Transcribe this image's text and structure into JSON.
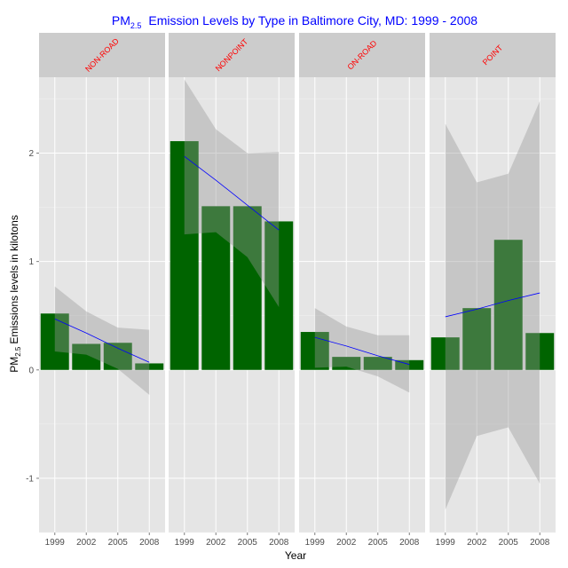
{
  "chart_data": {
    "type": "bar",
    "title": {
      "prefix": "PM",
      "subscript": "2.5",
      "suffix": "Emission Levels by Type in Baltimore City, MD: 1999 - 2008"
    },
    "xlabel": "Year",
    "ylabel": {
      "prefix": "PM",
      "subscript": "2.5",
      "suffix": "Emissions levels in kilotons"
    },
    "ylim": [
      -1.5,
      2.7
    ],
    "yticks": [
      -1,
      0,
      1,
      2
    ],
    "grid": true,
    "categories": [
      "1999",
      "2002",
      "2005",
      "2008"
    ],
    "panels": [
      {
        "name": "NON-ROAD",
        "values": [
          0.52,
          0.24,
          0.25,
          0.06
        ],
        "trend": [
          0.47,
          0.34,
          0.2,
          0.07
        ],
        "ci_low": [
          0.17,
          0.14,
          0.01,
          -0.23
        ],
        "ci_high": [
          0.77,
          0.54,
          0.39,
          0.37
        ]
      },
      {
        "name": "NONPOINT",
        "values": [
          2.11,
          1.51,
          1.51,
          1.37
        ],
        "trend": [
          1.97,
          1.75,
          1.52,
          1.29
        ],
        "ci_low": [
          1.25,
          1.27,
          1.04,
          0.58
        ],
        "ci_high": [
          2.68,
          2.22,
          2.0,
          2.01
        ]
      },
      {
        "name": "ON-ROAD",
        "values": [
          0.35,
          0.12,
          0.12,
          0.09
        ],
        "trend": [
          0.3,
          0.22,
          0.13,
          0.05
        ],
        "ci_low": [
          0.02,
          0.03,
          -0.06,
          -0.21
        ],
        "ci_high": [
          0.57,
          0.4,
          0.32,
          0.32
        ]
      },
      {
        "name": "POINT",
        "values": [
          0.3,
          0.57,
          1.2,
          0.34
        ],
        "trend": [
          0.49,
          0.56,
          0.64,
          0.71
        ],
        "ci_low": [
          -1.29,
          -0.61,
          -0.53,
          -1.05
        ],
        "ci_high": [
          2.27,
          1.73,
          1.81,
          2.48
        ]
      }
    ],
    "colors": {
      "bar": "#006400",
      "trend_line": "#0000ff",
      "ci_band": "#999999",
      "panel_bg": "#e5e5e5",
      "strip_bg": "#cccccc",
      "grid": "#ffffff",
      "title": "#0000ff",
      "strip_text": "#ff0000"
    }
  }
}
